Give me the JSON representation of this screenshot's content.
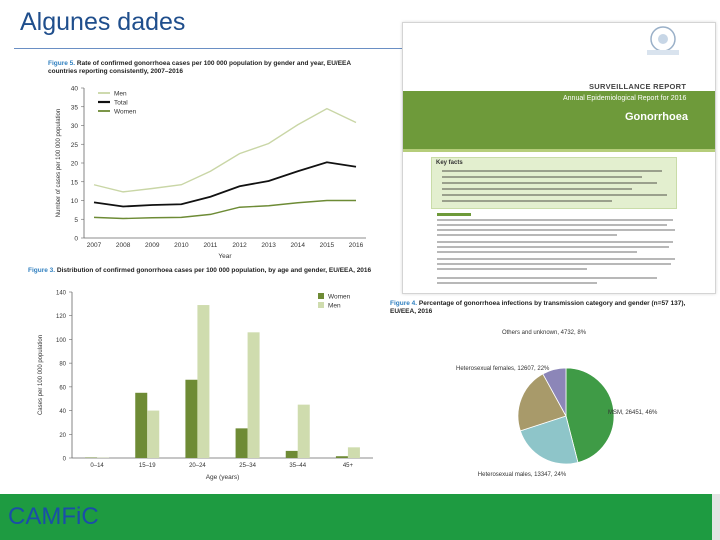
{
  "slide": {
    "title": "Algunes dades",
    "brand": "CAMFiC"
  },
  "colors": {
    "title": "#1f4e8c",
    "men_line": "#c9d6a6",
    "total_line": "#111111",
    "women_line": "#6d8b35",
    "women_bar": "#6e8b35",
    "men_bar": "#cfdcae",
    "footer": "#1e9b41",
    "pie_msm": "#3f9b46",
    "pie_hetero_males": "#8ec5c9",
    "pie_hetero_females": "#a89a6a",
    "pie_other": "#8c86b8"
  },
  "figure5": {
    "caption_label": "Figure 5.",
    "caption": "Rate of confirmed gonorrhoea cases per 100 000 population by gender and year, EU/EEA countries reporting consistently, 2007–2016"
  },
  "figure3": {
    "caption_label": "Figure 3.",
    "caption": "Distribution of confirmed gonorrhoea cases per 100 000 population, by age and gender, EU/EEA, 2016"
  },
  "figure4": {
    "caption_label": "Figure 4.",
    "caption": "Percentage of gonorrhoea infections by transmission category and gender (n=57 137), EU/EEA, 2016"
  },
  "report": {
    "surveillance": "SURVEILLANCE REPORT",
    "subtitle": "Annual Epidemiological Report for 2016",
    "disease": "Gonorrhoea",
    "key_facts": "Key facts"
  },
  "chart_data": [
    {
      "type": "line",
      "title": "",
      "xlabel": "Year",
      "ylabel": "Number of cases per 100 000 population",
      "x": [
        "2007",
        "2008",
        "2009",
        "2010",
        "2011",
        "2012",
        "2013",
        "2014",
        "2015",
        "2016"
      ],
      "ylim": [
        0,
        40
      ],
      "yticks": [
        "0",
        "5",
        "10",
        "15",
        "20",
        "25",
        "30",
        "35",
        "40"
      ],
      "legend": "top-left",
      "grid": false,
      "series": [
        {
          "name": "Men",
          "values": [
            14.2,
            12.3,
            13.2,
            14.2,
            17.8,
            22.5,
            25.2,
            30.2,
            34.5,
            30.8
          ]
        },
        {
          "name": "Total",
          "values": [
            9.5,
            8.4,
            8.8,
            9.0,
            11.0,
            13.8,
            15.2,
            17.8,
            20.2,
            19.0
          ]
        },
        {
          "name": "Women",
          "values": [
            5.5,
            5.2,
            5.4,
            5.5,
            6.3,
            8.2,
            8.6,
            9.4,
            10.0,
            10.0
          ]
        }
      ]
    },
    {
      "type": "bar",
      "title": "",
      "xlabel": "Age (years)",
      "ylabel": "Cases per 100 000 population",
      "categories": [
        "0–14",
        "15–19",
        "20–24",
        "25–34",
        "35–44",
        "45+"
      ],
      "ylim": [
        0,
        140
      ],
      "yticks": [
        "0",
        "20",
        "40",
        "60",
        "80",
        "100",
        "120",
        "140"
      ],
      "legend": "top-right",
      "series": [
        {
          "name": "Women",
          "values": [
            0.4,
            55,
            66,
            25,
            6,
            1.5
          ]
        },
        {
          "name": "Men",
          "values": [
            0.3,
            40,
            129,
            106,
            45,
            9
          ]
        }
      ]
    },
    {
      "type": "pie",
      "title": "",
      "slices": [
        {
          "label": "MSM, 26451, 46%",
          "value": 46
        },
        {
          "label": "Heterosexual males, 13347, 24%",
          "value": 24
        },
        {
          "label": "Heterosexual females, 12607, 22%",
          "value": 22
        },
        {
          "label": "Others and unknown, 4732, 8%",
          "value": 8
        }
      ]
    }
  ]
}
